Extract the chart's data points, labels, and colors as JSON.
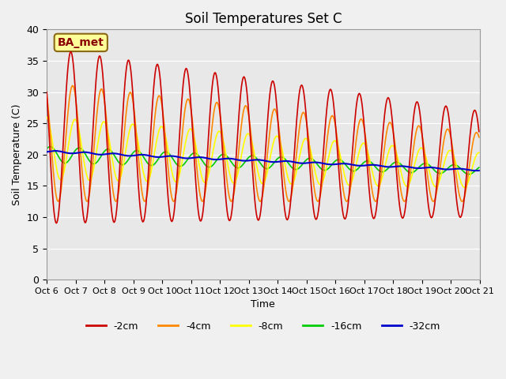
{
  "title": "Soil Temperatures Set C",
  "xlabel": "Time",
  "ylabel": "Soil Temperature (C)",
  "annotation_text": "BA_met",
  "ylim": [
    0,
    40
  ],
  "yticks": [
    0,
    5,
    10,
    15,
    20,
    25,
    30,
    35,
    40
  ],
  "background_color": "#e8e8e8",
  "fig_facecolor": "#f0f0f0",
  "series": {
    "-2cm": {
      "color": "#cc0000",
      "linewidth": 1.2
    },
    "-4cm": {
      "color": "#ff8800",
      "linewidth": 1.2
    },
    "-8cm": {
      "color": "#ffff00",
      "linewidth": 1.2
    },
    "-16cm": {
      "color": "#00cc00",
      "linewidth": 1.2
    },
    "-32cm": {
      "color": "#0000cc",
      "linewidth": 1.5
    }
  },
  "x_labels": [
    "Oct 6",
    "Oct 7",
    "Oct 8",
    "Oct 9",
    "Oct 10",
    "Oct 11",
    "Oct 12",
    "Oct 13",
    "Oct 14",
    "Oct 15",
    "Oct 16",
    "Oct 17",
    "Oct 18",
    "Oct 19",
    "Oct 20",
    "Oct 21"
  ],
  "n_days": 15,
  "pts_per_day": 48
}
